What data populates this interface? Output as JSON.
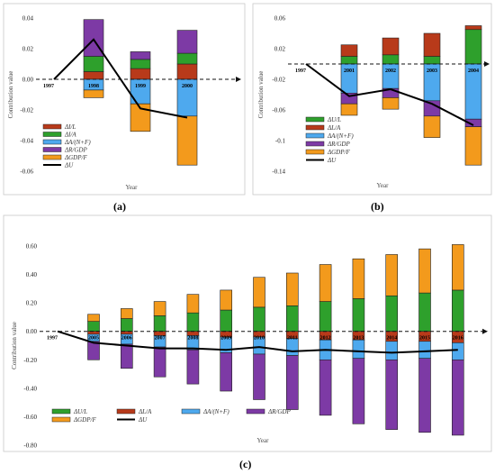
{
  "colors": {
    "dUL": "#2ea02c",
    "dLA": "#b83a1a",
    "dANF": "#4ea9ee",
    "dRGDP": "#7d3aa5",
    "dGDPF": "#f39a1c",
    "dU": "#000000"
  },
  "panel_labels": [
    "(a)",
    "(b)",
    "(c)"
  ],
  "chart_data": [
    {
      "id": "a",
      "type": "bar",
      "stacked": true,
      "ylabel": "Contribution value",
      "xlabel": "Year",
      "ylim": [
        -0.06,
        0.04
      ],
      "yticks": [
        0.04,
        0.02,
        0.0,
        -0.02,
        -0.04,
        -0.06
      ],
      "ytick_labels": [
        "0.04",
        "0.02",
        "0.00",
        "-0.02",
        "-0.04",
        "-0.06"
      ],
      "start_year": "1997",
      "categories": [
        "1998",
        "1999",
        "2000"
      ],
      "series": [
        {
          "key": "dLA",
          "name": "ΔI/L",
          "values": [
            0.005,
            0.007,
            0.01
          ]
        },
        {
          "key": "dUL",
          "name": "ΔI/A",
          "values": [
            0.01,
            0.006,
            0.007
          ]
        },
        {
          "key": "dANF",
          "name": "ΔA/(N+F)",
          "values": [
            -0.007,
            -0.016,
            -0.024
          ]
        },
        {
          "key": "dRGDP",
          "name": "ΔR/GDP",
          "values": [
            0.024,
            0.005,
            0.015
          ]
        },
        {
          "key": "dGDPF",
          "name": "ΔGDP/F",
          "values": [
            -0.005,
            -0.018,
            -0.032
          ]
        }
      ],
      "line": {
        "name": "ΔU",
        "x": [
          "1997",
          "1998",
          "1999",
          "2000"
        ],
        "values": [
          0.0,
          0.026,
          -0.019,
          -0.025
        ]
      }
    },
    {
      "id": "b",
      "type": "bar",
      "stacked": true,
      "ylabel": "Contribution value",
      "xlabel": "Year",
      "ylim": [
        -0.14,
        0.06
      ],
      "yticks": [
        0.06,
        0.02,
        -0.02,
        -0.06,
        -0.1,
        -0.14
      ],
      "ytick_labels": [
        "0.06",
        "0.02",
        "-0.02",
        "-0.06",
        "-0.1",
        "-0.14"
      ],
      "start_year": "1997",
      "categories": [
        "2001",
        "2002",
        "2003",
        "2004"
      ],
      "series": [
        {
          "key": "dUL",
          "name": "ΔU/L",
          "values": [
            0.01,
            0.012,
            0.01,
            0.045
          ]
        },
        {
          "key": "dLA",
          "name": "ΔL/A",
          "values": [
            0.015,
            0.022,
            0.03,
            0.005
          ]
        },
        {
          "key": "dANF",
          "name": "ΔA/(N+F)",
          "values": [
            -0.038,
            -0.032,
            -0.048,
            -0.072
          ]
        },
        {
          "key": "dRGDP",
          "name": "ΔR/GDP",
          "values": [
            -0.014,
            -0.012,
            -0.02,
            -0.01
          ]
        },
        {
          "key": "dGDPF",
          "name": "ΔGDP/F",
          "values": [
            -0.015,
            -0.015,
            -0.028,
            -0.05
          ]
        },
        {
          "key": "dU",
          "name": "ΔU",
          "values": null
        }
      ],
      "line": {
        "name": "ΔU",
        "x": [
          "1997",
          "2001",
          "2002",
          "2003",
          "2004"
        ],
        "values": [
          0.0,
          -0.042,
          -0.033,
          -0.052,
          -0.08
        ]
      }
    },
    {
      "id": "c",
      "type": "bar",
      "stacked": true,
      "ylabel": "Contribution value",
      "xlabel": "Year",
      "ylim": [
        -0.8,
        0.6
      ],
      "yticks": [
        0.6,
        0.4,
        0.2,
        0.0,
        -0.2,
        -0.4,
        -0.6,
        -0.8
      ],
      "ytick_labels": [
        "0.60",
        "0.40",
        "0.20",
        "0.00",
        "-0.20",
        "-0.40",
        "-0.60",
        "-0.80"
      ],
      "start_year": "1997",
      "categories": [
        "2005",
        "2006",
        "2007",
        "2008",
        "2009",
        "2010",
        "2011",
        "2012",
        "2013",
        "2014",
        "2015",
        "2016"
      ],
      "series": [
        {
          "key": "dUL",
          "name": "ΔU/L",
          "values": [
            0.07,
            0.09,
            0.11,
            0.13,
            0.15,
            0.17,
            0.18,
            0.21,
            0.23,
            0.25,
            0.27,
            0.29
          ]
        },
        {
          "key": "dLA",
          "name": "ΔL/A",
          "values": [
            -0.02,
            -0.02,
            -0.03,
            -0.03,
            -0.04,
            -0.04,
            -0.05,
            -0.06,
            -0.06,
            -0.07,
            -0.07,
            -0.08
          ]
        },
        {
          "key": "dANF",
          "name": "ΔA/(N+F)",
          "values": [
            -0.05,
            -0.07,
            -0.08,
            -0.1,
            -0.11,
            -0.12,
            -0.12,
            -0.14,
            -0.13,
            -0.13,
            -0.12,
            -0.12
          ]
        },
        {
          "key": "dRGDP",
          "name": "ΔR/GDP",
          "values": [
            -0.13,
            -0.17,
            -0.21,
            -0.24,
            -0.27,
            -0.32,
            -0.38,
            -0.39,
            -0.46,
            -0.49,
            -0.52,
            -0.53
          ]
        },
        {
          "key": "dGDPF",
          "name": "ΔGDP/F",
          "values": [
            0.05,
            0.07,
            0.1,
            0.13,
            0.14,
            0.21,
            0.23,
            0.26,
            0.28,
            0.29,
            0.31,
            0.32
          ]
        }
      ],
      "line": {
        "name": "ΔU",
        "x": [
          "1997",
          "2005",
          "2006",
          "2007",
          "2008",
          "2009",
          "2010",
          "2011",
          "2012",
          "2013",
          "2014",
          "2015",
          "2016"
        ],
        "values": [
          0.0,
          -0.08,
          -0.1,
          -0.12,
          -0.12,
          -0.13,
          -0.11,
          -0.14,
          -0.13,
          -0.14,
          -0.15,
          -0.14,
          -0.13
        ]
      }
    }
  ]
}
